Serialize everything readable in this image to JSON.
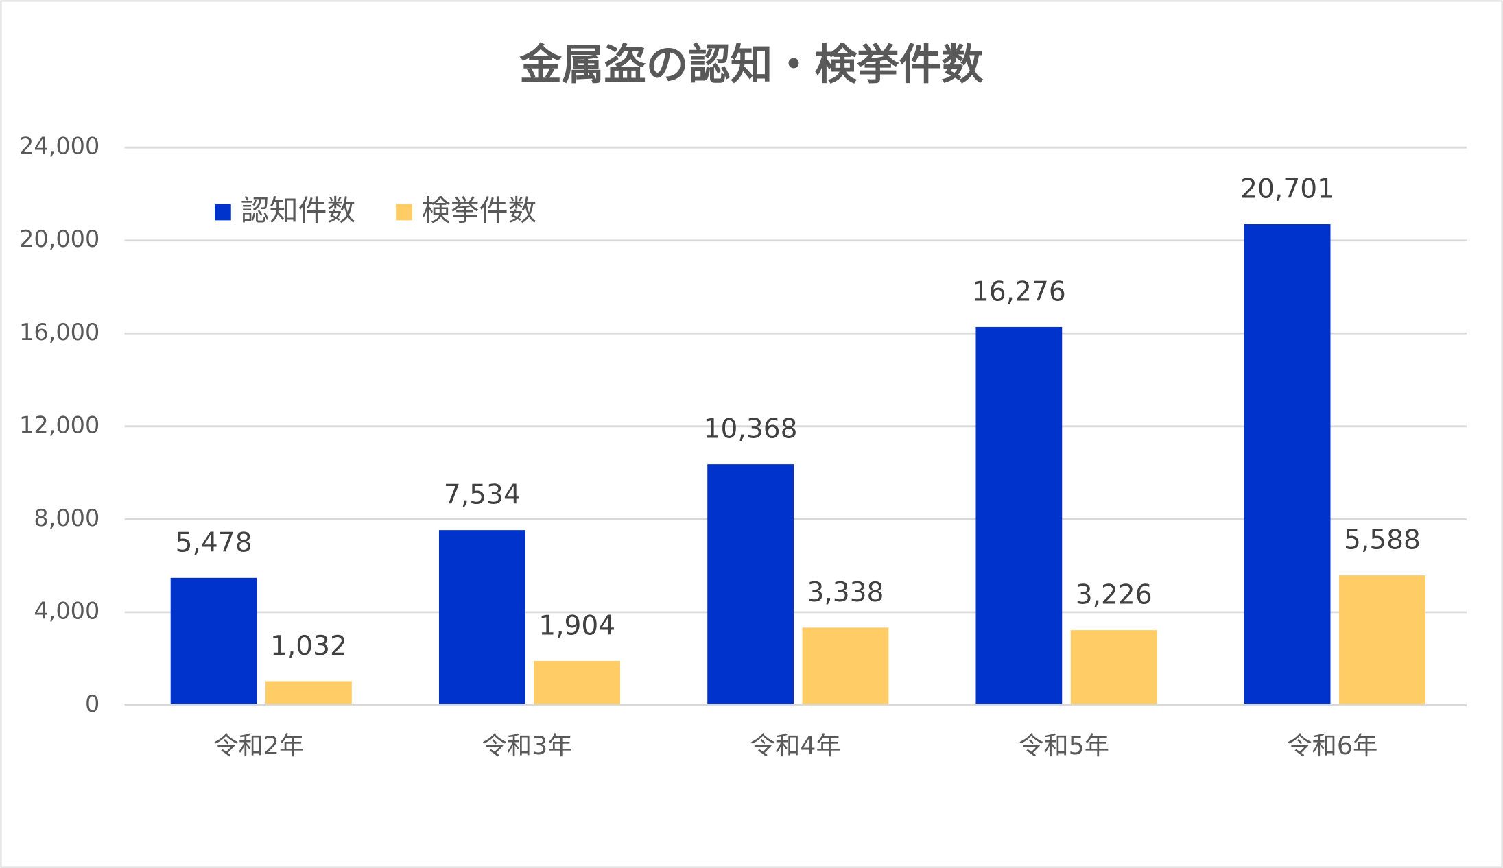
{
  "chart_data": {
    "type": "bar",
    "title": "金属盗の認知・検挙件数",
    "categories": [
      "令和2年",
      "令和3年",
      "令和4年",
      "令和5年",
      "令和6年"
    ],
    "series": [
      {
        "name": "認知件数",
        "color": "#0033cc",
        "values": [
          5478,
          7534,
          10368,
          16276,
          20701
        ],
        "value_labels": [
          "5,478",
          "7,534",
          "10,368",
          "16,276",
          "20,701"
        ]
      },
      {
        "name": "検挙件数",
        "color": "#ffcc66",
        "values": [
          1032,
          1904,
          3338,
          3226,
          5588
        ],
        "value_labels": [
          "1,032",
          "1,904",
          "3,338",
          "3,226",
          "5,588"
        ]
      }
    ],
    "ylim": [
      0,
      24000
    ],
    "yticks": [
      0,
      {
        "value": 4000,
        "label": "4,000"
      },
      {
        "value": 8000,
        "label": "8,000"
      },
      {
        "value": 12000,
        "label": "12,000"
      },
      {
        "value": 16000,
        "label": "16,000"
      },
      {
        "value": 20000,
        "label": "20,000"
      },
      {
        "value": 24000,
        "label": "24,000"
      }
    ],
    "grid": true,
    "legend": "top-left"
  }
}
